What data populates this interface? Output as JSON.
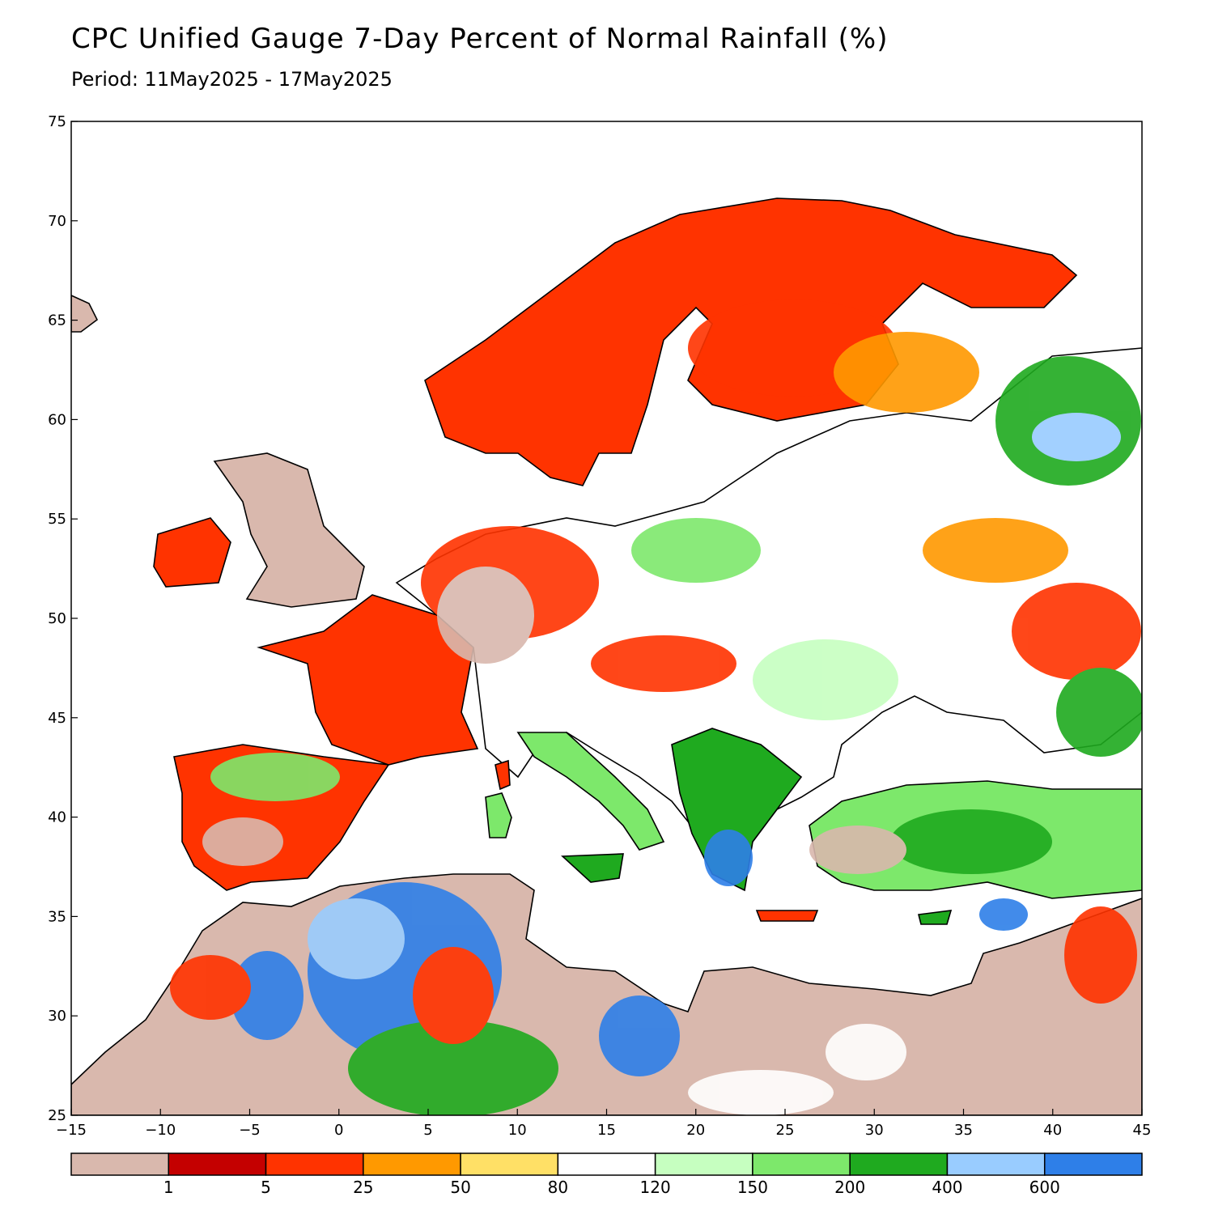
{
  "title": "CPC Unified Gauge 7-Day Percent of Normal Rainfall (%)",
  "subtitle": "Period: 11May2025 - 17May2025",
  "axes": {
    "lon_ticks": [
      "−15",
      "−10",
      "−5",
      "0",
      "5",
      "10",
      "15",
      "20",
      "25",
      "30",
      "35",
      "40",
      "45"
    ],
    "lat_ticks": [
      "25",
      "30",
      "35",
      "40",
      "45",
      "50",
      "55",
      "60",
      "65",
      "70",
      "75"
    ],
    "lon_range": [
      -15,
      45
    ],
    "lat_range": [
      25,
      75
    ]
  },
  "colorbar": {
    "bins": [
      {
        "color": "#d9b8ad"
      },
      {
        "color": "#c40000"
      },
      {
        "color": "#ff3300"
      },
      {
        "color": "#ff9900"
      },
      {
        "color": "#ffe066"
      },
      {
        "color": "#ffffff"
      },
      {
        "color": "#c6ffc0"
      },
      {
        "color": "#7de86b"
      },
      {
        "color": "#1faa1f"
      },
      {
        "color": "#99ccff"
      },
      {
        "color": "#2e7fe8"
      }
    ],
    "labels": [
      "1",
      "5",
      "25",
      "50",
      "80",
      "120",
      "150",
      "200",
      "400",
      "600"
    ]
  }
}
